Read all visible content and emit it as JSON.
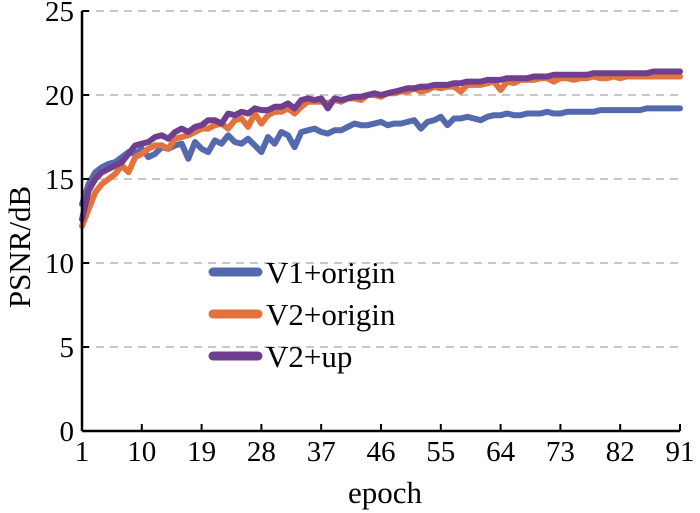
{
  "chart_data": {
    "type": "line",
    "title": "",
    "xlabel": "epoch",
    "ylabel": "PSNR/dB",
    "xlim": [
      1,
      91
    ],
    "ylim": [
      0,
      25
    ],
    "xticks": [
      1,
      10,
      19,
      28,
      37,
      46,
      55,
      64,
      73,
      82,
      91
    ],
    "yticks": [
      0,
      5,
      10,
      15,
      20,
      25
    ],
    "grid": "horizontal-dashed",
    "legend": "center-left",
    "series": [
      {
        "name": "V1+origin",
        "color": "#5469ae",
        "x": [
          1,
          2,
          3,
          4,
          5,
          6,
          7,
          8,
          9,
          10,
          11,
          12,
          13,
          14,
          15,
          16,
          17,
          18,
          19,
          20,
          21,
          22,
          23,
          24,
          25,
          26,
          27,
          28,
          29,
          30,
          31,
          32,
          33,
          34,
          35,
          36,
          37,
          38,
          39,
          40,
          41,
          42,
          43,
          44,
          45,
          46,
          47,
          48,
          49,
          50,
          51,
          52,
          53,
          54,
          55,
          56,
          57,
          58,
          59,
          60,
          61,
          62,
          63,
          64,
          65,
          66,
          67,
          68,
          69,
          70,
          71,
          72,
          73,
          74,
          75,
          76,
          77,
          78,
          79,
          80,
          81,
          82,
          83,
          84,
          85,
          86,
          87,
          88,
          89,
          90,
          91
        ],
        "values": [
          13.5,
          14.7,
          15.4,
          15.7,
          15.9,
          16.0,
          16.3,
          16.6,
          16.5,
          16.8,
          16.3,
          16.5,
          16.9,
          16.8,
          17.0,
          17.1,
          16.2,
          17.2,
          16.8,
          16.6,
          17.3,
          17.1,
          17.6,
          17.2,
          17.1,
          17.4,
          17.0,
          16.6,
          17.5,
          17.1,
          17.8,
          17.6,
          16.9,
          17.8,
          17.9,
          18.0,
          17.8,
          17.7,
          17.9,
          17.9,
          18.1,
          18.3,
          18.2,
          18.2,
          18.3,
          18.4,
          18.2,
          18.3,
          18.3,
          18.4,
          18.5,
          18.0,
          18.4,
          18.5,
          18.7,
          18.2,
          18.6,
          18.6,
          18.7,
          18.6,
          18.5,
          18.7,
          18.8,
          18.8,
          18.9,
          18.8,
          18.8,
          18.9,
          18.9,
          18.9,
          19.0,
          18.9,
          18.9,
          19.0,
          19.0,
          19.0,
          19.0,
          19.0,
          19.1,
          19.1,
          19.1,
          19.1,
          19.1,
          19.1,
          19.1,
          19.2,
          19.2,
          19.2,
          19.2,
          19.2,
          19.2
        ]
      },
      {
        "name": "V2+origin",
        "color": "#e2733c",
        "x": [
          1,
          2,
          3,
          4,
          5,
          6,
          7,
          8,
          9,
          10,
          11,
          12,
          13,
          14,
          15,
          16,
          17,
          18,
          19,
          20,
          21,
          22,
          23,
          24,
          25,
          26,
          27,
          28,
          29,
          30,
          31,
          32,
          33,
          34,
          35,
          36,
          37,
          38,
          39,
          40,
          41,
          42,
          43,
          44,
          45,
          46,
          47,
          48,
          49,
          50,
          51,
          52,
          53,
          54,
          55,
          56,
          57,
          58,
          59,
          60,
          61,
          62,
          63,
          64,
          65,
          66,
          67,
          68,
          69,
          70,
          71,
          72,
          73,
          74,
          75,
          76,
          77,
          78,
          79,
          80,
          81,
          82,
          83,
          84,
          85,
          86,
          87,
          88,
          89,
          90,
          91
        ],
        "values": [
          12.2,
          13.2,
          14.2,
          14.7,
          15.0,
          15.3,
          15.8,
          15.4,
          16.3,
          16.5,
          16.8,
          17.0,
          17.0,
          16.8,
          17.4,
          17.5,
          17.6,
          17.8,
          18.0,
          18.0,
          18.2,
          18.3,
          18.0,
          18.5,
          18.6,
          18.1,
          18.9,
          18.3,
          18.8,
          19.0,
          19.0,
          19.2,
          18.9,
          19.3,
          19.6,
          19.6,
          19.6,
          19.5,
          19.7,
          19.6,
          19.8,
          19.8,
          19.7,
          20.0,
          20.0,
          19.9,
          20.1,
          20.1,
          20.2,
          20.2,
          20.4,
          20.2,
          20.3,
          20.5,
          20.4,
          20.5,
          20.5,
          20.2,
          20.6,
          20.6,
          20.6,
          20.7,
          20.8,
          20.3,
          20.8,
          20.7,
          20.9,
          20.9,
          20.9,
          21.0,
          21.0,
          20.8,
          21.0,
          21.0,
          20.9,
          21.0,
          21.0,
          21.1,
          21.0,
          21.0,
          21.1,
          21.0,
          21.1,
          21.1,
          21.1,
          21.1,
          21.1,
          21.1,
          21.1,
          21.1,
          21.1
        ]
      },
      {
        "name": "V2+up",
        "color": "#6f3e8f",
        "x": [
          1,
          2,
          3,
          4,
          5,
          6,
          7,
          8,
          9,
          10,
          11,
          12,
          13,
          14,
          15,
          16,
          17,
          18,
          19,
          20,
          21,
          22,
          23,
          24,
          25,
          26,
          27,
          28,
          29,
          30,
          31,
          32,
          33,
          34,
          35,
          36,
          37,
          38,
          39,
          40,
          41,
          42,
          43,
          44,
          45,
          46,
          47,
          48,
          49,
          50,
          51,
          52,
          53,
          54,
          55,
          56,
          57,
          58,
          59,
          60,
          61,
          62,
          63,
          64,
          65,
          66,
          67,
          68,
          69,
          70,
          71,
          72,
          73,
          74,
          75,
          76,
          77,
          78,
          79,
          80,
          81,
          82,
          83,
          84,
          85,
          86,
          87,
          88,
          89,
          90,
          91
        ],
        "values": [
          12.6,
          14.3,
          15.0,
          15.4,
          15.6,
          15.8,
          16.0,
          16.5,
          17.0,
          17.1,
          17.2,
          17.5,
          17.6,
          17.4,
          17.8,
          18.0,
          17.8,
          18.1,
          18.2,
          18.5,
          18.5,
          18.3,
          18.9,
          18.8,
          19.0,
          18.9,
          19.2,
          19.1,
          19.1,
          19.3,
          19.3,
          19.5,
          19.2,
          19.7,
          19.8,
          19.7,
          19.8,
          19.2,
          19.8,
          19.7,
          19.8,
          19.9,
          19.9,
          20.0,
          20.1,
          20.0,
          20.1,
          20.2,
          20.3,
          20.4,
          20.4,
          20.5,
          20.5,
          20.6,
          20.6,
          20.6,
          20.7,
          20.7,
          20.8,
          20.8,
          20.8,
          20.9,
          20.9,
          20.9,
          21.0,
          21.0,
          21.0,
          21.0,
          21.1,
          21.1,
          21.1,
          21.2,
          21.2,
          21.2,
          21.2,
          21.2,
          21.2,
          21.3,
          21.3,
          21.3,
          21.3,
          21.3,
          21.3,
          21.3,
          21.3,
          21.3,
          21.4,
          21.4,
          21.4,
          21.4,
          21.4
        ]
      }
    ]
  }
}
